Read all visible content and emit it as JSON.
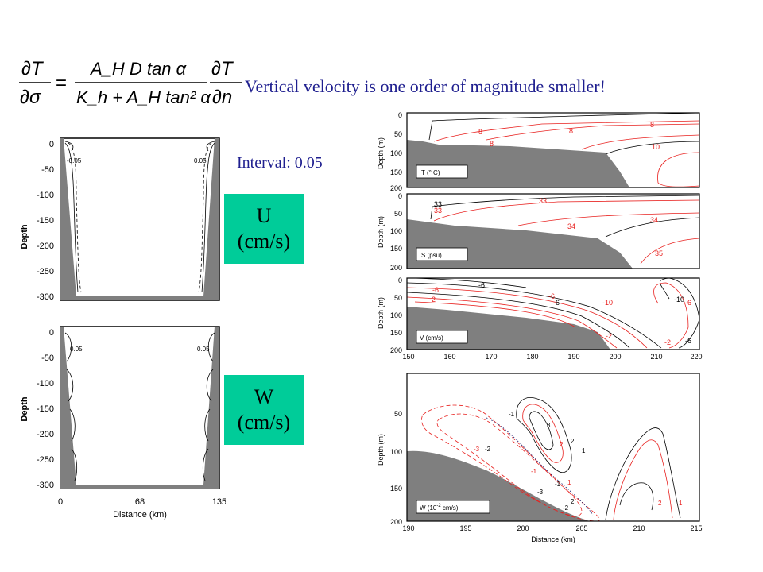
{
  "slide": {
    "headline": "Vertical velocity is one order of magnitude smaller!",
    "interval": "Interval: 0.05",
    "badge_u": [
      "U",
      "(cm/s)"
    ],
    "badge_w": [
      "W",
      "(cm/s)"
    ]
  },
  "equation": {
    "lhs_num": "∂T",
    "lhs_den": "∂σ",
    "equals": "=",
    "mid_num": "A_H D tan α",
    "mid_den": "K_h + A_H tan² α",
    "rhs_num": "∂T",
    "rhs_den": "∂n"
  },
  "left_panels": {
    "ylabel": "Depth",
    "xlabel": "Distance (km)",
    "yticks": [
      "0",
      "-50",
      "-100",
      "-150",
      "-200",
      "-250",
      "-300"
    ],
    "xticks": [
      "0",
      "68",
      "135"
    ],
    "u_labels": [
      "-0.05",
      "0.05"
    ],
    "w_labels": [
      "0.05",
      "0.05"
    ]
  },
  "right_panels": {
    "ylabel": "Depth (m)",
    "xlabel": "Distance (km)",
    "top_yticks": [
      "0",
      "50",
      "100",
      "150",
      "200"
    ],
    "top_xticks": [
      "150",
      "160",
      "170",
      "180",
      "190",
      "200",
      "210",
      "220"
    ],
    "bottom_yticks": [
      "50",
      "100",
      "150",
      "200"
    ],
    "bottom_xticks": [
      "190",
      "195",
      "200",
      "205",
      "210",
      "215"
    ],
    "panel_T": {
      "legend": "T (° C)",
      "labels": [
        "8",
        "8",
        "8",
        "8",
        "10"
      ]
    },
    "panel_S": {
      "legend": "S (psu)",
      "labels": [
        "33",
        "33",
        "33",
        "34",
        "34",
        "35"
      ]
    },
    "panel_V": {
      "legend": "V (cm/s)",
      "labels": [
        "-6",
        "-6",
        "-2",
        "-6",
        "-6",
        "-10",
        "-10",
        "-6",
        "-2",
        "-2",
        "-6"
      ]
    },
    "panel_W": {
      "legend_main": "W (10",
      "legend_sup": "-2",
      "legend_tail": " cm/s)",
      "labels": [
        "-1",
        "3",
        "2",
        "1",
        "2",
        "-3",
        "-2",
        "-3",
        "-1",
        "-1",
        "-2",
        "2",
        "1",
        "2",
        "1"
      ]
    }
  },
  "colors": {
    "text_blue": "#1f1f8f",
    "badge": "#00cc99",
    "land": "#7f7f7f",
    "red": "#e8211f",
    "black": "#000000"
  }
}
